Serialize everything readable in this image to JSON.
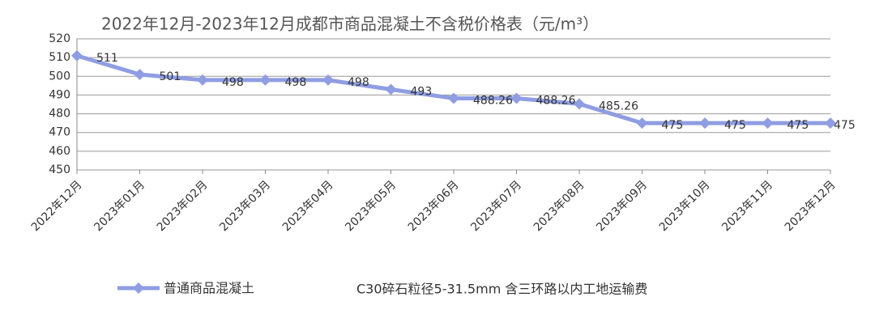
{
  "chart_data": {
    "type": "line",
    "title": "2022年12月-2023年12月成都市商品混凝土不含税价格表（元/m³）",
    "categories": [
      "2022年12月",
      "2023年01月",
      "2023年02月",
      "2023年03月",
      "2023年04月",
      "2023年05月",
      "2023年06月",
      "2023年07月",
      "2023年08月",
      "2023年09月",
      "2023年10月",
      "2023年11月",
      "2023年12月"
    ],
    "series": [
      {
        "name": "普通商品混凝土",
        "color": "#8f9de3",
        "values": [
          511,
          501,
          498,
          498,
          498,
          493,
          488.26,
          488.26,
          485.26,
          475,
          475,
          475,
          475
        ]
      }
    ],
    "ylim": [
      450,
      520
    ],
    "yticks": [
      450,
      460,
      470,
      480,
      490,
      500,
      510,
      520
    ],
    "grid": true,
    "annotation": "C30碎石粒径5-31.5mm 含三环路以内工地运输费"
  }
}
